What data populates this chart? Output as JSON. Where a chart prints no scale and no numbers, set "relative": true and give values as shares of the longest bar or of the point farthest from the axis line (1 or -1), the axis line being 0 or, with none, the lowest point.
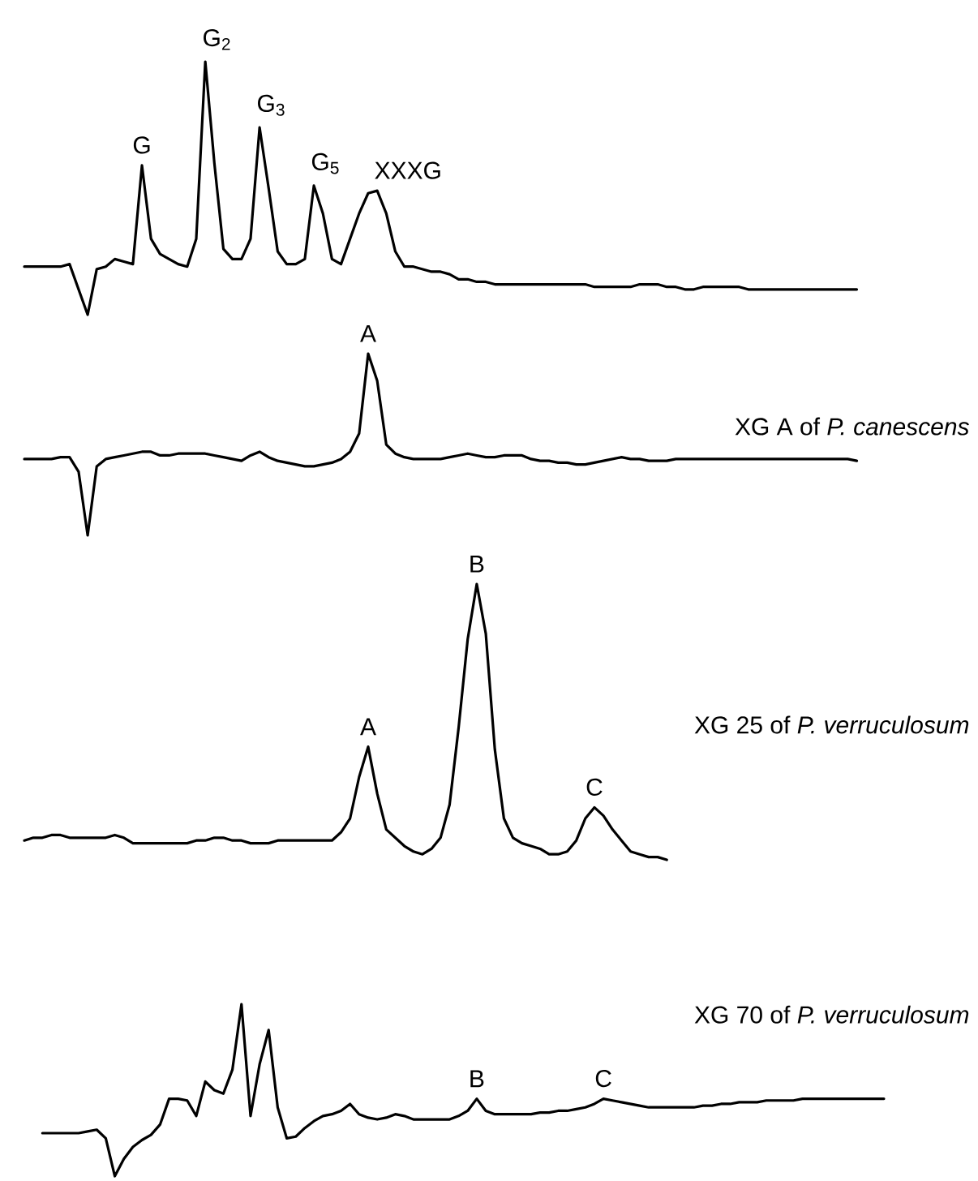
{
  "chart_data": [
    {
      "type": "line",
      "relative": true,
      "categories": [
        null,
        null,
        null,
        null,
        null,
        null,
        null,
        null,
        null,
        null,
        null,
        null,
        null,
        null,
        null,
        null,
        null,
        null,
        null,
        null,
        null,
        null,
        null,
        null,
        null,
        null,
        null,
        null,
        null,
        null,
        null,
        null,
        null,
        null,
        null,
        null,
        null,
        null,
        null,
        null,
        null,
        null,
        null,
        null,
        null,
        null,
        null,
        null,
        null,
        null,
        null,
        null,
        null,
        null,
        null,
        null,
        null,
        null,
        null,
        null,
        null,
        null,
        null,
        null,
        null,
        null,
        null,
        null,
        null,
        null,
        null,
        null,
        null,
        null,
        null,
        null,
        null,
        null,
        null,
        null,
        null,
        null,
        null,
        null,
        null,
        null,
        null,
        null,
        null,
        null,
        null,
        null,
        null,
        null,
        null,
        null
      ],
      "series": [
        {
          "color": "#000000",
          "values": [
            0.19,
            0.19,
            0.19,
            0.19,
            0.19,
            0.2,
            0.1,
            0,
            0.18,
            0.19,
            0.22,
            0.21,
            0.2,
            0.59,
            0.3,
            0.24,
            0.22,
            0.2,
            0.19,
            0.3,
            1,
            0.6,
            0.26,
            0.22,
            0.22,
            0.3,
            0.74,
            0.5,
            0.25,
            0.2,
            0.2,
            0.22,
            0.51,
            0.4,
            0.22,
            0.2,
            0.3,
            0.4,
            0.48,
            0.49,
            0.4,
            0.25,
            0.19,
            0.19,
            0.18,
            0.17,
            0.17,
            0.16,
            0.14,
            0.14,
            0.13,
            0.13,
            0.12,
            0.12,
            0.12,
            0.12,
            0.12,
            0.12,
            0.12,
            0.12,
            0.12,
            0.12,
            0.12,
            0.11,
            0.11,
            0.11,
            0.11,
            0.11,
            0.12,
            0.12,
            0.12,
            0.11,
            0.11,
            0.1,
            0.1,
            0.11,
            0.11,
            0.11,
            0.11,
            0.11,
            0.1,
            0.1,
            0.1,
            0.1,
            0.1,
            0.1,
            0.1,
            0.1,
            0.1,
            0.1,
            0.1,
            0.1,
            0.1,
            null,
            null,
            null
          ]
        }
      ],
      "annotations": [
        "G",
        "G$_{2}$",
        "G$_{3}$",
        "G$_{5}$",
        "XXXG"
      ]
    },
    {
      "type": "line",
      "relative": true,
      "categories": [
        null,
        null,
        null,
        null,
        null,
        null,
        null,
        null,
        null,
        null,
        null,
        null,
        null,
        null,
        null,
        null,
        null,
        null,
        null,
        null,
        null,
        null,
        null,
        null,
        null,
        null,
        null,
        null,
        null,
        null,
        null,
        null,
        null,
        null,
        null,
        null,
        null,
        null,
        null,
        null,
        null,
        null,
        null,
        null,
        null,
        null,
        null,
        null,
        null,
        null,
        null,
        null,
        null,
        null,
        null,
        null,
        null,
        null,
        null,
        null,
        null,
        null,
        null,
        null,
        null,
        null,
        null,
        null,
        null,
        null,
        null,
        null,
        null,
        null,
        null,
        null,
        null,
        null,
        null,
        null,
        null,
        null,
        null,
        null,
        null,
        null,
        null,
        null,
        null,
        null,
        null,
        null,
        null,
        null,
        null,
        null
      ],
      "series": [
        {
          "name": "XG A of *P. canescens*",
          "color": "#000000",
          "values": [
            0.42,
            0.42,
            0.42,
            0.42,
            0.43,
            0.43,
            0.35,
            0,
            0.38,
            0.42,
            0.43,
            0.44,
            0.45,
            0.46,
            0.46,
            0.44,
            0.44,
            0.45,
            0.45,
            0.45,
            0.45,
            0.44,
            0.43,
            0.42,
            0.41,
            0.44,
            0.46,
            0.43,
            0.41,
            0.4,
            0.39,
            0.38,
            0.38,
            0.39,
            0.4,
            0.42,
            0.46,
            0.56,
            1,
            0.85,
            0.5,
            0.45,
            0.43,
            0.42,
            0.42,
            0.42,
            0.42,
            0.43,
            0.44,
            0.45,
            0.44,
            0.43,
            0.43,
            0.44,
            0.44,
            0.44,
            0.42,
            0.41,
            0.41,
            0.4,
            0.4,
            0.39,
            0.39,
            0.4,
            0.41,
            0.42,
            0.43,
            0.42,
            0.42,
            0.41,
            0.41,
            0.41,
            0.42,
            0.42,
            0.42,
            0.42,
            0.42,
            0.42,
            0.42,
            0.42,
            0.42,
            0.42,
            0.42,
            0.42,
            0.42,
            0.42,
            0.42,
            0.42,
            0.42,
            0.42,
            0.42,
            0.42,
            0.41,
            null,
            null,
            null
          ]
        }
      ],
      "annotations": [
        "A"
      ]
    },
    {
      "type": "line",
      "relative": true,
      "categories": [
        null,
        null,
        null,
        null,
        null,
        null,
        null,
        null,
        null,
        null,
        null,
        null,
        null,
        null,
        null,
        null,
        null,
        null,
        null,
        null,
        null,
        null,
        null,
        null,
        null,
        null,
        null,
        null,
        null,
        null,
        null,
        null,
        null,
        null,
        null,
        null,
        null,
        null,
        null,
        null,
        null,
        null,
        null,
        null,
        null,
        null,
        null,
        null,
        null,
        null,
        null,
        null,
        null,
        null,
        null,
        null,
        null,
        null,
        null,
        null,
        null,
        null,
        null,
        null,
        null,
        null,
        null,
        null,
        null,
        null,
        null,
        null,
        null,
        null,
        null,
        null,
        null,
        null,
        null,
        null,
        null,
        null,
        null,
        null,
        null,
        null,
        null,
        null,
        null,
        null,
        null,
        null,
        null,
        null,
        null,
        null
      ],
      "series": [
        {
          "name": "XG 25 of *P. verruculosum*",
          "color": "#000000",
          "values": [
            0.07,
            0.08,
            0.08,
            0.09,
            0.09,
            0.08,
            0.08,
            0.08,
            0.08,
            0.08,
            0.09,
            0.08,
            0.06,
            0.06,
            0.06,
            0.06,
            0.06,
            0.06,
            0.06,
            0.07,
            0.07,
            0.08,
            0.08,
            0.07,
            0.07,
            0.06,
            0.06,
            0.06,
            0.07,
            0.07,
            0.07,
            0.07,
            0.07,
            0.07,
            0.07,
            0.1,
            0.15,
            0.3,
            0.41,
            0.24,
            0.11,
            0.08,
            0.05,
            0.03,
            0.02,
            0.04,
            0.08,
            0.2,
            0.48,
            0.8,
            1,
            0.82,
            0.4,
            0.15,
            0.08,
            0.06,
            0.05,
            0.04,
            0.02,
            0.02,
            0.03,
            0.07,
            0.15,
            0.19,
            0.16,
            0.11,
            0.07,
            0.03,
            0.02,
            0.01,
            0.01,
            0,
            null,
            null,
            null,
            null,
            null,
            null,
            null,
            null,
            null,
            null,
            null,
            null,
            null,
            null,
            null,
            null,
            null,
            null,
            null,
            null,
            null,
            null,
            null,
            null
          ]
        }
      ],
      "annotations": [
        "A",
        "B",
        "C"
      ]
    },
    {
      "type": "line",
      "relative": true,
      "categories": [
        null,
        null,
        null,
        null,
        null,
        null,
        null,
        null,
        null,
        null,
        null,
        null,
        null,
        null,
        null,
        null,
        null,
        null,
        null,
        null,
        null,
        null,
        null,
        null,
        null,
        null,
        null,
        null,
        null,
        null,
        null,
        null,
        null,
        null,
        null,
        null,
        null,
        null,
        null,
        null,
        null,
        null,
        null,
        null,
        null,
        null,
        null,
        null,
        null,
        null,
        null,
        null,
        null,
        null,
        null,
        null,
        null,
        null,
        null,
        null,
        null,
        null,
        null,
        null,
        null,
        null,
        null,
        null,
        null,
        null,
        null,
        null,
        null,
        null,
        null,
        null,
        null,
        null,
        null,
        null,
        null,
        null,
        null,
        null,
        null,
        null,
        null,
        null,
        null,
        null,
        null,
        null,
        null,
        null,
        null,
        null
      ],
      "series": [
        {
          "name": "XG 70 of *P. verruculosum*",
          "color": "#000000",
          "values": [
            null,
            null,
            0.25,
            0.25,
            0.25,
            0.25,
            0.25,
            0.26,
            0.27,
            0.22,
            0,
            0.1,
            0.17,
            0.21,
            0.24,
            0.3,
            0.45,
            0.45,
            0.44,
            0.35,
            0.55,
            0.5,
            0.48,
            0.62,
            1,
            0.35,
            0.65,
            0.85,
            0.4,
            0.22,
            0.23,
            0.28,
            0.32,
            0.35,
            0.36,
            0.38,
            0.42,
            0.36,
            0.34,
            0.33,
            0.34,
            0.36,
            0.35,
            0.33,
            0.33,
            0.33,
            0.33,
            0.33,
            0.35,
            0.38,
            0.45,
            0.38,
            0.36,
            0.36,
            0.36,
            0.36,
            0.36,
            0.37,
            0.37,
            0.38,
            0.38,
            0.39,
            0.4,
            0.42,
            0.45,
            0.44,
            0.43,
            0.42,
            0.41,
            0.4,
            0.4,
            0.4,
            0.4,
            0.4,
            0.4,
            0.41,
            0.41,
            0.42,
            0.42,
            0.43,
            0.43,
            0.43,
            0.44,
            0.44,
            0.44,
            0.44,
            0.45,
            0.45,
            0.45,
            0.45,
            0.45,
            0.45,
            0.45,
            0.45,
            0.45,
            0.45
          ]
        }
      ],
      "annotations": [
        "B",
        "C"
      ]
    }
  ]
}
